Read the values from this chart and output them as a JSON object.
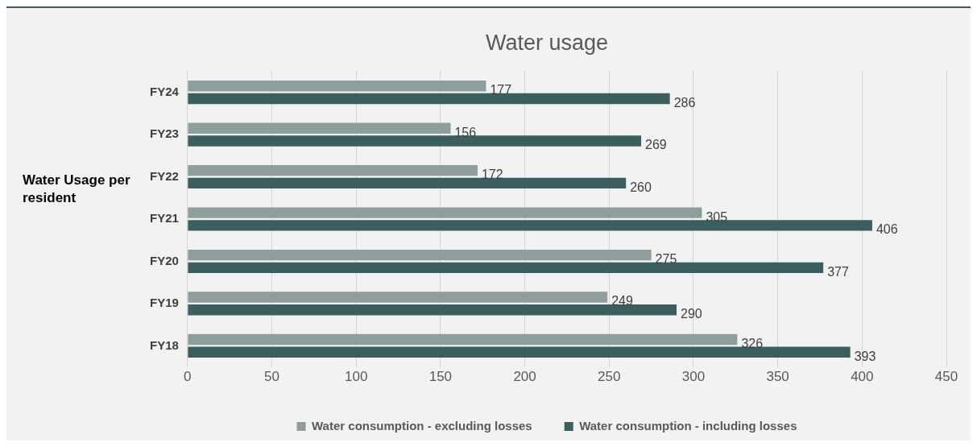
{
  "chart_data": {
    "type": "bar",
    "orientation": "horizontal",
    "title": "Water usage",
    "ylabel": "Water Usage per resident",
    "categories": [
      "FY24",
      "FY23",
      "FY22",
      "FY21",
      "FY20",
      "FY19",
      "FY18"
    ],
    "series": [
      {
        "name": "Water consumption - excluding losses",
        "color": "#8d9e9c",
        "values": [
          177,
          156,
          172,
          305,
          275,
          249,
          326
        ]
      },
      {
        "name": "Water consumption - including losses",
        "color": "#3b5f5e",
        "values": [
          286,
          269,
          260,
          406,
          377,
          290,
          393
        ]
      }
    ],
    "xlim": [
      0,
      450
    ],
    "xticks": [
      0,
      50,
      100,
      150,
      200,
      250,
      300,
      350,
      400,
      450
    ],
    "grid": "x",
    "legend": "bottom",
    "data_labels": true
  }
}
